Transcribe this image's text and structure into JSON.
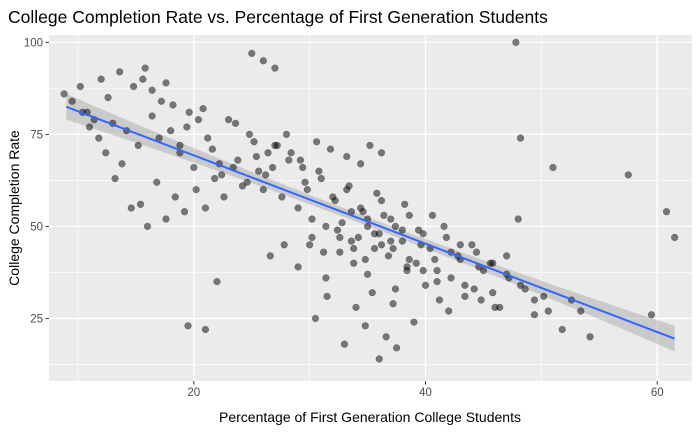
{
  "chart_data": {
    "type": "scatter",
    "title": "College Completion Rate vs. Percentage of First Generation Students",
    "xlabel": "Percentage of First Generation College Students",
    "ylabel": "College Completion Rate",
    "xlim": [
      7.5,
      63
    ],
    "ylim": [
      8,
      102
    ],
    "xticks": [
      20,
      40,
      60
    ],
    "yticks": [
      25,
      50,
      75,
      100
    ],
    "xtick_labels": [
      "20",
      "40",
      "60"
    ],
    "ytick_labels": [
      "25",
      "50",
      "75",
      "100"
    ],
    "grid": true,
    "legend": "none",
    "trend": {
      "method": "linear",
      "x": [
        9,
        61.5
      ],
      "y": [
        82.5,
        19.5
      ],
      "ci_halfwidth_center": 1.2,
      "ci_halfwidth_edge": 3.5
    },
    "points": {
      "x": [
        8.8,
        9.5,
        10.2,
        10.8,
        11.4,
        12.0,
        12.6,
        13.0,
        13.6,
        14.2,
        14.8,
        15.2,
        15.8,
        16.4,
        17.0,
        17.6,
        18.2,
        18.8,
        19.4,
        20.0,
        20.8,
        21.6,
        22.4,
        23.0,
        23.8,
        24.6,
        25.2,
        26.0,
        26.8,
        27.6,
        28.4,
        29.0,
        29.6,
        30.2,
        30.8,
        31.4,
        32.0,
        32.6,
        33.2,
        33.8,
        34.4,
        35.0,
        35.6,
        36.2,
        36.8,
        37.4,
        38.0,
        38.6,
        39.2,
        39.8,
        40.4,
        41.0,
        41.6,
        42.2,
        42.8,
        43.4,
        44.0,
        44.8,
        45.6,
        46.4,
        47.2,
        48.0,
        48.6,
        49.4,
        50.2,
        51.0,
        51.8,
        52.6,
        53.4,
        54.2,
        57.5,
        59.5,
        60.8,
        61.5,
        47.8,
        48.2,
        25.0,
        26.0,
        27.0,
        19.5,
        21.0,
        22.0,
        36.0,
        37.5,
        30.5,
        31.5,
        33.0,
        34.0,
        34.8,
        35.4,
        36.6,
        37.2,
        38.4,
        39.0,
        40.0,
        41.2,
        42.0,
        43.0,
        44.2,
        45.0,
        46.0,
        28.0,
        29.2,
        27.0,
        26.2,
        25.4,
        24.2,
        23.4,
        22.6,
        21.8,
        21.0,
        20.2,
        19.2,
        18.4,
        17.6,
        16.8,
        16.0,
        15.4,
        14.6,
        13.8,
        13.2,
        12.4,
        11.8,
        11.0,
        10.4,
        29.8,
        31.0,
        32.2,
        33.4,
        34.6,
        35.8,
        37.0,
        38.2,
        39.4,
        40.6,
        41.8,
        43.0,
        44.4,
        45.8,
        47.0,
        30.0,
        31.2,
        32.4,
        33.6,
        34.8,
        36.0,
        37.2,
        38.4,
        39.6,
        40.8,
        32.8,
        33.6,
        34.2,
        35.0,
        35.6,
        36.4,
        37.0,
        38.0,
        36.2,
        35.2,
        34.4,
        33.2,
        31.8,
        30.6,
        29.4,
        28.2,
        27.2,
        26.4,
        25.6,
        24.8,
        23.6,
        22.2,
        21.2,
        20.4,
        19.6,
        18.8,
        18.0,
        17.2,
        16.4,
        15.6,
        26.6,
        27.8,
        29.0,
        30.2,
        31.4,
        32.6,
        33.8,
        35.0,
        36.2,
        37.4,
        38.6,
        39.8,
        41.0,
        42.2,
        43.4,
        44.6,
        45.8,
        47.0,
        48.2,
        49.4,
        50.6
      ],
      "y": [
        86.0,
        84.0,
        88.0,
        81.0,
        79.0,
        90.0,
        85.0,
        78.0,
        92.0,
        76.0,
        88.0,
        72.0,
        93.0,
        80.0,
        74.0,
        89.0,
        83.0,
        70.0,
        77.0,
        66.0,
        82.0,
        71.0,
        64.0,
        79.0,
        68.0,
        62.0,
        73.0,
        60.0,
        66.0,
        58.0,
        70.0,
        55.0,
        62.0,
        52.0,
        65.0,
        50.0,
        58.0,
        47.0,
        60.0,
        44.0,
        55.0,
        52.0,
        48.0,
        57.0,
        42.0,
        50.0,
        46.0,
        53.0,
        40.0,
        48.0,
        44.0,
        38.0,
        50.0,
        36.0,
        42.0,
        34.0,
        45.0,
        30.0,
        40.0,
        28.0,
        36.0,
        52.0,
        33.0,
        26.0,
        31.0,
        66.0,
        22.0,
        30.0,
        27.0,
        20.0,
        64.0,
        26.0,
        54.0,
        47.0,
        100.0,
        74.0,
        97.0,
        95.0,
        93.0,
        23.0,
        22.0,
        35.0,
        14.0,
        17.0,
        25.0,
        31.0,
        18.0,
        28.0,
        23.0,
        32.0,
        20.0,
        29.0,
        38.0,
        24.0,
        34.0,
        30.0,
        27.0,
        41.0,
        33.0,
        38.0,
        28.0,
        75.0,
        68.0,
        72.0,
        64.0,
        69.0,
        61.0,
        66.0,
        58.0,
        63.0,
        55.0,
        60.0,
        54.0,
        58.0,
        52.0,
        62.0,
        50.0,
        56.0,
        55.0,
        67.0,
        63.0,
        70.0,
        74.0,
        77.0,
        81.0,
        60.0,
        63.0,
        57.0,
        61.0,
        54.0,
        59.0,
        52.0,
        56.0,
        49.0,
        53.0,
        47.0,
        45.0,
        43.0,
        40.0,
        37.0,
        45.0,
        43.0,
        49.0,
        46.0,
        41.0,
        48.0,
        44.0,
        39.0,
        45.0,
        41.0,
        51.0,
        54.0,
        47.0,
        50.0,
        44.0,
        53.0,
        46.0,
        49.0,
        70.0,
        72.0,
        67.0,
        69.0,
        71.0,
        73.0,
        66.0,
        68.0,
        72.0,
        70.0,
        65.0,
        75.0,
        78.0,
        67.0,
        74.0,
        79.0,
        81.0,
        72.0,
        76.0,
        84.0,
        87.0,
        90.0,
        42.0,
        45.0,
        39.0,
        47.0,
        36.0,
        43.0,
        40.0,
        37.0,
        45.0,
        33.0,
        41.0,
        38.0,
        35.0,
        43.0,
        31.0,
        39.0,
        32.0,
        42.0,
        34.0,
        30.0,
        27.0
      ]
    }
  }
}
